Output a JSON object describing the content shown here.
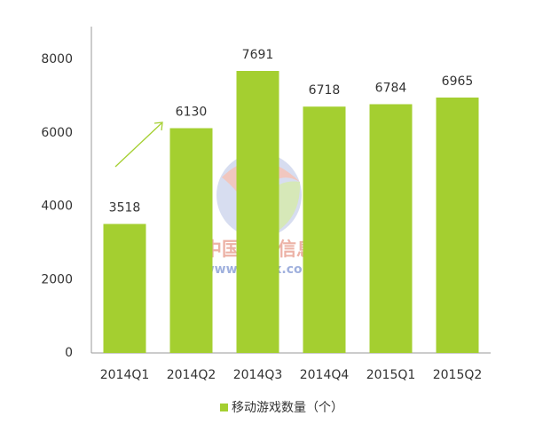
{
  "chart_data": {
    "type": "bar",
    "categories": [
      "2014Q1",
      "2014Q2",
      "2014Q3",
      "2014Q4",
      "2015Q1",
      "2015Q2"
    ],
    "series": [
      {
        "name": "移动游戏数量（个）",
        "color": "#a4cf30",
        "values": [
          3518,
          6130,
          7691,
          6718,
          6784,
          6965
        ]
      }
    ],
    "ylim": [
      0,
      8900
    ],
    "yticks": [
      0,
      2000,
      4000,
      6000,
      8000
    ],
    "grid": false,
    "legend": "bottom",
    "annotations": [
      "中国产业信息",
      "www.chyxx.com"
    ]
  }
}
